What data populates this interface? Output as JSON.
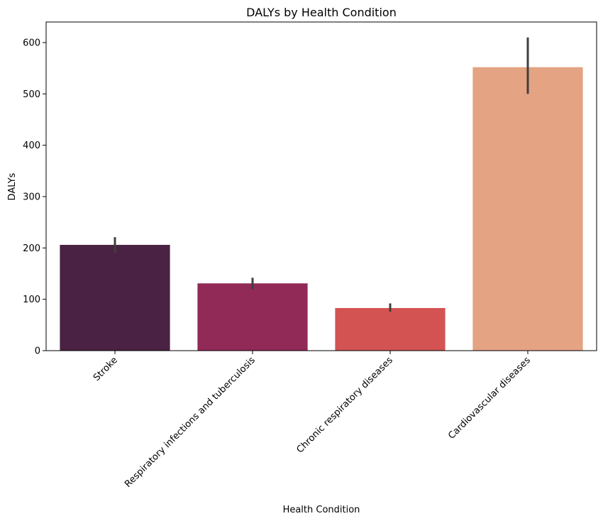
{
  "chart_data": {
    "type": "bar",
    "title": "DALYs by Health Condition",
    "xlabel": "Health Condition",
    "ylabel": "DALYs",
    "categories": [
      "Stroke",
      "Respiratory infections and tuberculosis",
      "Chronic respiratory diseases",
      "Cardiovascular diseases"
    ],
    "values": [
      206,
      131,
      83,
      552
    ],
    "error_low": [
      190,
      119,
      76,
      500
    ],
    "error_high": [
      221,
      142,
      92,
      610
    ],
    "colors": [
      "#4a2243",
      "#912a57",
      "#d35353",
      "#e4a382"
    ],
    "ylim": [
      0,
      640
    ],
    "yticks": [
      0,
      100,
      200,
      300,
      400,
      500,
      600
    ],
    "grid": false,
    "legend": "none"
  }
}
